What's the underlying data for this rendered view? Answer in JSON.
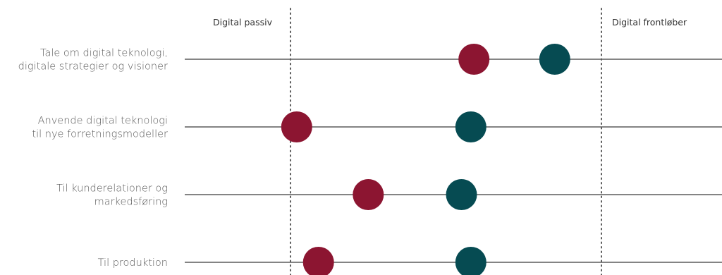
{
  "chart_data": {
    "type": "scatter",
    "title": "",
    "markers": {
      "left": "Digital passiv",
      "right": "Digital frontløber"
    },
    "rows": [
      {
        "label_lines": [
          "Tale om digital teknologi,",
          "digitale strategier og visioner"
        ],
        "series_a": 0.59,
        "series_b": 0.85
      },
      {
        "label_lines": [
          "Anvende digital teknologi",
          "til nye forretningsmodeller"
        ],
        "series_a": 0.02,
        "series_b": 0.58
      },
      {
        "label_lines": [
          "Til kunderelationer og",
          "markedsføring"
        ],
        "series_a": 0.25,
        "series_b": 0.55
      },
      {
        "label_lines": [
          "Til produktion"
        ],
        "series_a": 0.09,
        "series_b": 0.58
      }
    ],
    "series": [
      {
        "key": "series_a",
        "color": "#8c1531"
      },
      {
        "key": "series_b",
        "color": "#064b52"
      }
    ],
    "colors": {
      "line": "#5c5c5c",
      "marker_line": "#5c5c5c"
    }
  }
}
